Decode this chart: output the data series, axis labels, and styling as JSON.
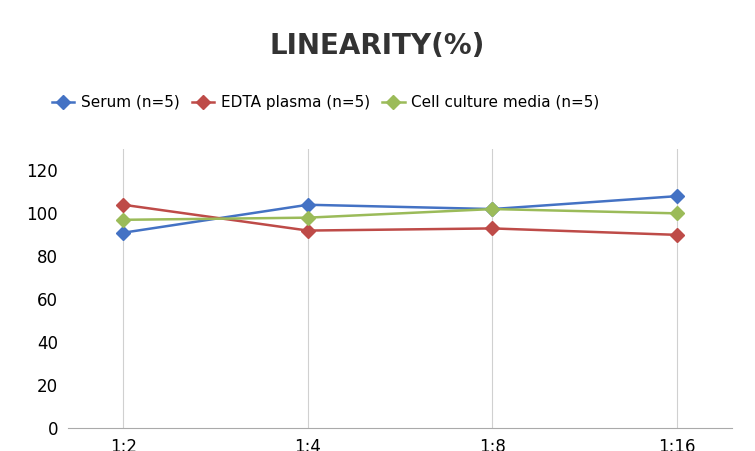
{
  "title": "LINEARITY(%)",
  "title_fontsize": 20,
  "title_fontweight": "bold",
  "x_labels": [
    "1:2",
    "1:4",
    "1:8",
    "1:16"
  ],
  "x_positions": [
    0,
    1,
    2,
    3
  ],
  "series": [
    {
      "label": "Serum (n=5)",
      "values": [
        91,
        104,
        102,
        108
      ],
      "color": "#4472C4",
      "marker": "D",
      "markersize": 7,
      "linewidth": 1.8
    },
    {
      "label": "EDTA plasma (n=5)",
      "values": [
        104,
        92,
        93,
        90
      ],
      "color": "#BE4B48",
      "marker": "D",
      "markersize": 7,
      "linewidth": 1.8
    },
    {
      "label": "Cell culture media (n=5)",
      "values": [
        97,
        98,
        102,
        100
      ],
      "color": "#9BBB59",
      "marker": "D",
      "markersize": 7,
      "linewidth": 1.8
    }
  ],
  "ylim": [
    0,
    130
  ],
  "yticks": [
    0,
    20,
    40,
    60,
    80,
    100,
    120
  ],
  "background_color": "#ffffff",
  "grid_color": "#d0d0d0",
  "legend_fontsize": 11
}
